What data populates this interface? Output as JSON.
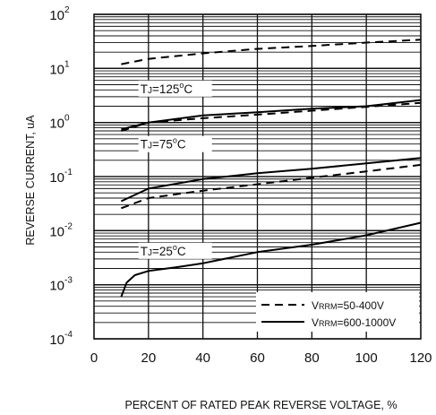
{
  "chart_data": {
    "type": "line",
    "xlabel": "PERCENT OF RATED PEAK REVERSE VOLTAGE, %",
    "ylabel": "REVERSE CURRENT, uA",
    "x_ticks": [
      "0",
      "20",
      "40",
      "60",
      "80",
      "100",
      "120"
    ],
    "xlim": [
      0,
      120
    ],
    "y_scale": "log",
    "ylim": [
      0.0001,
      100
    ],
    "y_ticks": [
      {
        "base": "10",
        "exp": "2",
        "value": 100
      },
      {
        "base": "10",
        "exp": "1",
        "value": 10
      },
      {
        "base": "10",
        "exp": "0",
        "value": 1
      },
      {
        "base": "10",
        "exp": "-1",
        "value": 0.1
      },
      {
        "base": "10",
        "exp": "-2",
        "value": 0.01
      },
      {
        "base": "10",
        "exp": "-3",
        "value": 0.001
      },
      {
        "base": "10",
        "exp": "-4",
        "value": 0.0001
      }
    ],
    "grid": true,
    "legend_position": "bottom-right",
    "legend": [
      {
        "prefix": "V",
        "sub": "RRM",
        "text": "=50-400V",
        "style": "dashed"
      },
      {
        "prefix": "V",
        "sub": "RRM",
        "text": "=600-1000V",
        "style": "solid"
      }
    ],
    "annotations": [
      {
        "prefix": "T",
        "sub": "J",
        "text": "=125",
        "sup": "o",
        "suffix": "C",
        "x": 17,
        "y": 3.5
      },
      {
        "prefix": "T",
        "sub": "J",
        "text": "=75",
        "sup": "o",
        "suffix": "C",
        "x": 17,
        "y": 0.33
      },
      {
        "prefix": "T",
        "sub": "J",
        "text": "=25",
        "sup": "o",
        "suffix": "C",
        "x": 17,
        "y": 0.0035
      }
    ],
    "series": [
      {
        "group": "TJ=125C",
        "style": "dashed",
        "x": [
          10,
          20,
          40,
          60,
          80,
          100,
          120
        ],
        "y": [
          12,
          15,
          19,
          23,
          26,
          30,
          34
        ]
      },
      {
        "group": "TJ=125C",
        "style": "solid",
        "x": [
          10,
          20,
          40,
          60,
          80,
          100,
          120
        ],
        "y": [
          0.75,
          1.0,
          1.35,
          1.55,
          1.8,
          2.0,
          2.6
        ]
      },
      {
        "group": "TJ=125C",
        "style": "dashed",
        "x": [
          10,
          20,
          40,
          60,
          80,
          100,
          120
        ],
        "y": [
          0.7,
          1.0,
          1.2,
          1.4,
          1.65,
          1.95,
          2.3
        ]
      },
      {
        "group": "TJ=75C",
        "style": "solid",
        "x": [
          10,
          20,
          40,
          60,
          80,
          100,
          120
        ],
        "y": [
          0.035,
          0.06,
          0.09,
          0.115,
          0.14,
          0.175,
          0.22
        ]
      },
      {
        "group": "TJ=75C",
        "style": "dashed",
        "x": [
          10,
          20,
          40,
          60,
          80,
          100,
          120
        ],
        "y": [
          0.026,
          0.04,
          0.055,
          0.072,
          0.095,
          0.125,
          0.165
        ]
      },
      {
        "group": "TJ=25C",
        "style": "solid",
        "x": [
          10,
          12,
          15,
          20,
          30,
          40,
          60,
          80,
          100,
          120
        ],
        "y": [
          0.0006,
          0.0011,
          0.0015,
          0.0018,
          0.0021,
          0.0025,
          0.004,
          0.0055,
          0.0082,
          0.014
        ]
      }
    ]
  }
}
